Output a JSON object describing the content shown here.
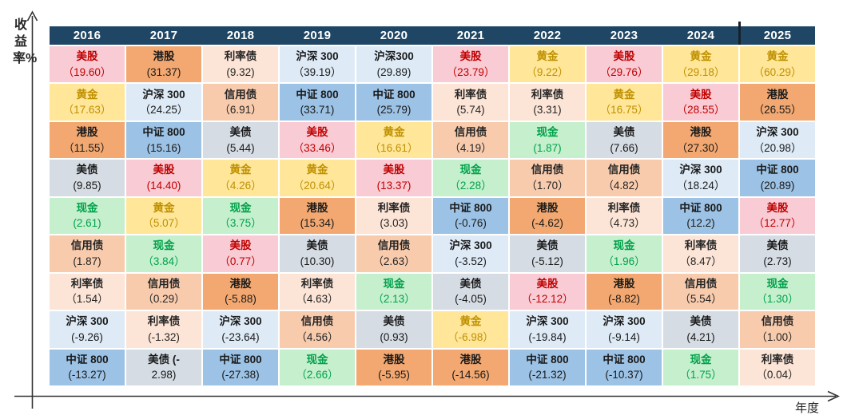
{
  "axes": {
    "y_label": "收益率%",
    "x_label": "年度"
  },
  "theme": {
    "header_bg": "#1f4765",
    "header_fg": "#ffffff",
    "divider_color": "#16212d",
    "axis_color": "#333333"
  },
  "colors": {
    "美股": {
      "bg": "#f9cbd4",
      "fg": "#c00000"
    },
    "港股": {
      "bg": "#f2a870",
      "fg": "#1a1a1a"
    },
    "黄金": {
      "bg": "#ffe699",
      "fg": "#bf9000"
    },
    "沪深300": {
      "bg": "#deebf7",
      "fg": "#1a1a1a"
    },
    "中证800": {
      "bg": "#9cc2e5",
      "fg": "#1a1a1a"
    },
    "美债": {
      "bg": "#d5dce4",
      "fg": "#1a1a1a"
    },
    "现金": {
      "bg": "#c5efcd",
      "fg": "#00a24b"
    },
    "信用债": {
      "bg": "#f8cbad",
      "fg": "#262626"
    },
    "利率债": {
      "bg": "#fce4d6",
      "fg": "#262626"
    }
  },
  "chart_data": {
    "type": "table",
    "title": "",
    "xlabel": "年度",
    "ylabel": "收益率%",
    "years": [
      "2016",
      "2017",
      "2018",
      "2019",
      "2020",
      "2021",
      "2022",
      "2023",
      "2024",
      "2025"
    ],
    "columns": [
      {
        "year": "2016",
        "cells": [
          {
            "a": "美股",
            "n": "美股",
            "d": "（19.60）",
            "v": 19.6
          },
          {
            "a": "黄金",
            "n": "黄金",
            "d": "（17.63）",
            "v": 17.63
          },
          {
            "a": "港股",
            "n": "港股",
            "d": "（11.55）",
            "v": 11.55
          },
          {
            "a": "美债",
            "n": "美债",
            "d": "(9.85)",
            "v": 9.85
          },
          {
            "a": "现金",
            "n": "现金",
            "d": "(2.61)",
            "v": 2.61
          },
          {
            "a": "信用债",
            "n": "信用债",
            "d": "(1.87)",
            "v": 1.87
          },
          {
            "a": "利率债",
            "n": "利率债",
            "d": "（1.54）",
            "v": 1.54
          },
          {
            "a": "沪深300",
            "n": "沪深 300",
            "d": "(-9.26)",
            "v": -9.26
          },
          {
            "a": "中证800",
            "n": "中证 800",
            "d": "(-13.27)",
            "v": -13.27
          }
        ]
      },
      {
        "year": "2017",
        "cells": [
          {
            "a": "港股",
            "n": "港股",
            "d": "(31.37)",
            "v": 31.37
          },
          {
            "a": "沪深300",
            "n": "沪深 300",
            "d": "（24.25）",
            "v": 24.25
          },
          {
            "a": "中证800",
            "n": "中证 800",
            "d": "(15.16)",
            "v": 15.16
          },
          {
            "a": "美股",
            "n": "美股",
            "d": "(14.40)",
            "v": 14.4
          },
          {
            "a": "黄金",
            "n": "黄金",
            "d": "（5.07）",
            "v": 5.07
          },
          {
            "a": "现金",
            "n": "现金",
            "d": "（3.84）",
            "v": 3.84
          },
          {
            "a": "信用债",
            "n": "信用债",
            "d": "（0.29）",
            "v": 0.29
          },
          {
            "a": "利率债",
            "n": "利率债",
            "d": "(-1.32)",
            "v": -1.32
          },
          {
            "a": "美债",
            "n": "美债 (-",
            "d": "2.98)",
            "v": -2.98
          }
        ]
      },
      {
        "year": "2018",
        "cells": [
          {
            "a": "利率债",
            "n": "利率债",
            "d": "(9.32)",
            "v": 9.32
          },
          {
            "a": "信用债",
            "n": "信用债",
            "d": "（6.91）",
            "v": 6.91
          },
          {
            "a": "美债",
            "n": "美债",
            "d": "(5.44)",
            "v": 5.44
          },
          {
            "a": "黄金",
            "n": "黄金",
            "d": "（4.26）",
            "v": 4.26
          },
          {
            "a": "现金",
            "n": "现金",
            "d": "（3.75）",
            "v": 3.75
          },
          {
            "a": "美股",
            "n": "美股",
            "d": "（0.77）",
            "v": 0.77
          },
          {
            "a": "港股",
            "n": "港股",
            "d": "(-5.88)",
            "v": -5.88
          },
          {
            "a": "沪深300",
            "n": "沪深 300",
            "d": "(-23.64)",
            "v": -23.64
          },
          {
            "a": "中证800",
            "n": "中证 800",
            "d": "(-27.38)",
            "v": -27.38
          }
        ]
      },
      {
        "year": "2019",
        "cells": [
          {
            "a": "沪深300",
            "n": "沪深 300",
            "d": "（39.19）",
            "v": 39.19
          },
          {
            "a": "中证800",
            "n": "中证 800",
            "d": "(33.71)",
            "v": 33.71
          },
          {
            "a": "美股",
            "n": "美股",
            "d": "（33.46）",
            "v": 33.46
          },
          {
            "a": "黄金",
            "n": "黄金",
            "d": "（20.64）",
            "v": 20.64
          },
          {
            "a": "港股",
            "n": "港股",
            "d": "(15.34)",
            "v": 15.34
          },
          {
            "a": "美债",
            "n": "美债",
            "d": "(10.30)",
            "v": 10.3
          },
          {
            "a": "利率债",
            "n": "利率债",
            "d": "（4.63）",
            "v": 4.63
          },
          {
            "a": "信用债",
            "n": "信用债",
            "d": "（4.56）",
            "v": 4.56
          },
          {
            "a": "现金",
            "n": "现金",
            "d": "（2.66）",
            "v": 2.66
          }
        ]
      },
      {
        "year": "2020",
        "cells": [
          {
            "a": "沪深300",
            "n": "沪深300",
            "d": "(29.89)",
            "v": 29.89
          },
          {
            "a": "中证800",
            "n": "中证 800",
            "d": "(25.79)",
            "v": 25.79
          },
          {
            "a": "黄金",
            "n": "黄金",
            "d": "（16.61）",
            "v": 16.61
          },
          {
            "a": "美股",
            "n": "美股",
            "d": "(13.37)",
            "v": 13.37
          },
          {
            "a": "利率债",
            "n": "利率债",
            "d": "(3.03)",
            "v": 3.03
          },
          {
            "a": "信用债",
            "n": "信用债",
            "d": "（2.63）",
            "v": 2.63
          },
          {
            "a": "现金",
            "n": "现金",
            "d": "（2.13）",
            "v": 2.13
          },
          {
            "a": "美债",
            "n": "美债",
            "d": "(0.93)",
            "v": 0.93
          },
          {
            "a": "港股",
            "n": "港股",
            "d": "(-5.95)",
            "v": -5.95
          }
        ]
      },
      {
        "year": "2021",
        "cells": [
          {
            "a": "美股",
            "n": "美股",
            "d": "（23.79）",
            "v": 23.79
          },
          {
            "a": "利率债",
            "n": "利率债",
            "d": "(5.74)",
            "v": 5.74
          },
          {
            "a": "信用债",
            "n": "信用债",
            "d": "（4.19）",
            "v": 4.19
          },
          {
            "a": "现金",
            "n": "现金",
            "d": "（2.28）",
            "v": 2.28
          },
          {
            "a": "中证800",
            "n": "中证 800",
            "d": "(-0.76)",
            "v": -0.76
          },
          {
            "a": "沪深300",
            "n": "沪深 300",
            "d": "(-3.52)",
            "v": -3.52
          },
          {
            "a": "美债",
            "n": "美债",
            "d": "(-4.05)",
            "v": -4.05
          },
          {
            "a": "黄金",
            "n": "黄金",
            "d": "（-6.98）",
            "v": -6.98
          },
          {
            "a": "港股",
            "n": "港股",
            "d": "(-14.56)",
            "v": -14.56
          }
        ]
      },
      {
        "year": "2022",
        "cells": [
          {
            "a": "黄金",
            "n": "黄金",
            "d": "（9.22）",
            "v": 9.22
          },
          {
            "a": "利率债",
            "n": "利率债",
            "d": "(3.31)",
            "v": 3.31
          },
          {
            "a": "现金",
            "n": "现金",
            "d": "(1.87)",
            "v": 1.87
          },
          {
            "a": "信用债",
            "n": "信用债",
            "d": "（1.70）",
            "v": 1.7
          },
          {
            "a": "港股",
            "n": "港股",
            "d": "(-4.62)",
            "v": -4.62
          },
          {
            "a": "美债",
            "n": "美债",
            "d": "(-5.12)",
            "v": -5.12
          },
          {
            "a": "美股",
            "n": "美股",
            "d": "（-12.12）",
            "v": -12.12
          },
          {
            "a": "沪深300",
            "n": "沪深 300",
            "d": "(-19.84)",
            "v": -19.84
          },
          {
            "a": "中证800",
            "n": "中证 800",
            "d": "(-21.32)",
            "v": -21.32
          }
        ]
      },
      {
        "year": "2023",
        "cells": [
          {
            "a": "美股",
            "n": "美股",
            "d": "（29.76）",
            "v": 29.76
          },
          {
            "a": "黄金",
            "n": "黄金",
            "d": "（16.75）",
            "v": 16.75
          },
          {
            "a": "美债",
            "n": "美债",
            "d": "(7.66)",
            "v": 7.66
          },
          {
            "a": "信用债",
            "n": "信用债",
            "d": "（4.82）",
            "v": 4.82
          },
          {
            "a": "利率债",
            "n": "利率债",
            "d": "（4.73）",
            "v": 4.73
          },
          {
            "a": "现金",
            "n": "现金",
            "d": "（1.96）",
            "v": 1.96
          },
          {
            "a": "港股",
            "n": "港股",
            "d": "(-8.82)",
            "v": -8.82
          },
          {
            "a": "沪深300",
            "n": "沪深 300",
            "d": "(-9.14)",
            "v": -9.14
          },
          {
            "a": "中证800",
            "n": "中证 800",
            "d": "(-10.37)",
            "v": -10.37
          }
        ]
      },
      {
        "year": "2024",
        "cells": [
          {
            "a": "黄金",
            "n": "黄金",
            "d": "（29.18）",
            "v": 29.18
          },
          {
            "a": "美股",
            "n": "美股",
            "d": "（28.55）",
            "v": 28.55
          },
          {
            "a": "港股",
            "n": "港股",
            "d": "（27.30）",
            "v": 27.3
          },
          {
            "a": "沪深300",
            "n": "沪深 300",
            "d": "（18.24）",
            "v": 18.24
          },
          {
            "a": "中证800",
            "n": "中证 800",
            "d": "(12.2)",
            "v": 12.2
          },
          {
            "a": "利率债",
            "n": "利率债",
            "d": "（8.47）",
            "v": 8.47
          },
          {
            "a": "信用债",
            "n": "信用债",
            "d": "（5.54）",
            "v": 5.54
          },
          {
            "a": "美债",
            "n": "美债",
            "d": "(4.21)",
            "v": 4.21
          },
          {
            "a": "现金",
            "n": "现金",
            "d": "（1.75）",
            "v": 1.75
          }
        ]
      },
      {
        "year": "2025",
        "cells": [
          {
            "a": "黄金",
            "n": "黄金",
            "d": "（60.29）",
            "v": 60.29
          },
          {
            "a": "港股",
            "n": "港股",
            "d": "（26.55）",
            "v": 26.55
          },
          {
            "a": "沪深300",
            "n": "沪深 300",
            "d": "（20.98）",
            "v": 20.98
          },
          {
            "a": "中证800",
            "n": "中证 800",
            "d": "(20.89)",
            "v": 20.89
          },
          {
            "a": "美股",
            "n": "美股",
            "d": "（12.77）",
            "v": 12.77
          },
          {
            "a": "美债",
            "n": "美债",
            "d": "(2.73)",
            "v": 2.73
          },
          {
            "a": "现金",
            "n": "现金",
            "d": "（1.30）",
            "v": 1.3
          },
          {
            "a": "信用债",
            "n": "信用债",
            "d": "（1.00）",
            "v": 1.0
          },
          {
            "a": "利率债",
            "n": "利率债",
            "d": "（0.04）",
            "v": 0.04
          }
        ]
      }
    ]
  }
}
